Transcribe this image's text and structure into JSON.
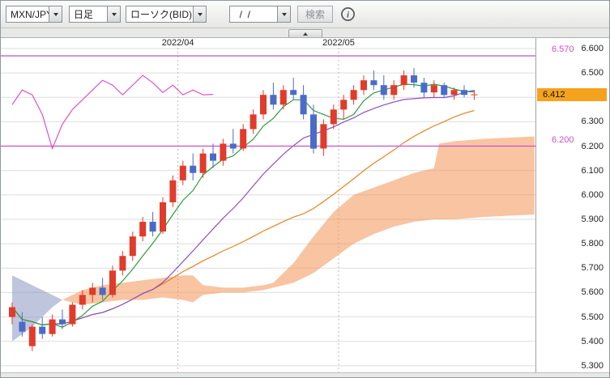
{
  "toolbar": {
    "pair": "MXN/JPY",
    "timeframe": "日足",
    "price_type": "ローソク(BID)",
    "date_value": "  /  /",
    "search": "検索"
  },
  "axis": {
    "labels": [
      "6.600",
      "6.500",
      "6.400",
      "6.300",
      "6.200",
      "6.100",
      "6.000",
      "5.900",
      "5.800",
      "5.700",
      "5.600",
      "5.500",
      "5.400",
      "5.300"
    ]
  },
  "price_marker": {
    "value": "6.412",
    "bg": "#f5a21d"
  },
  "chart_data": {
    "type": "candlestick",
    "symbol": "MXN/JPY",
    "timeframe_label": "日足",
    "quote_type": "ローソク(BID)",
    "ylim": [
      5.273,
      6.643
    ],
    "y_tick_step": 0.1,
    "x_labels": [
      {
        "label": "2022/04",
        "index": 16.5
      },
      {
        "label": "2022/05",
        "index": 32.5
      }
    ],
    "up_color": "#e13b2b",
    "down_color": "#4a6cc8",
    "grid_color": "#dedede",
    "candles": [
      [
        5.5,
        5.56,
        5.47,
        5.54
      ],
      [
        5.48,
        5.52,
        5.42,
        5.44
      ],
      [
        5.38,
        5.47,
        5.36,
        5.46
      ],
      [
        5.46,
        5.5,
        5.41,
        5.43
      ],
      [
        5.43,
        5.51,
        5.42,
        5.49
      ],
      [
        5.49,
        5.53,
        5.45,
        5.47
      ],
      [
        5.47,
        5.56,
        5.46,
        5.55
      ],
      [
        5.55,
        5.61,
        5.53,
        5.59
      ],
      [
        5.59,
        5.64,
        5.56,
        5.62
      ],
      [
        5.62,
        5.66,
        5.57,
        5.59
      ],
      [
        5.59,
        5.71,
        5.58,
        5.69
      ],
      [
        5.69,
        5.77,
        5.67,
        5.75
      ],
      [
        5.75,
        5.85,
        5.73,
        5.83
      ],
      [
        5.83,
        5.91,
        5.81,
        5.89
      ],
      [
        5.89,
        5.93,
        5.83,
        5.85
      ],
      [
        5.85,
        5.99,
        5.84,
        5.97
      ],
      [
        5.97,
        6.08,
        5.95,
        6.06
      ],
      [
        6.06,
        6.14,
        6.04,
        6.12
      ],
      [
        6.12,
        6.17,
        6.06,
        6.09
      ],
      [
        6.09,
        6.19,
        6.07,
        6.17
      ],
      [
        6.17,
        6.21,
        6.11,
        6.14
      ],
      [
        6.14,
        6.23,
        6.12,
        6.21
      ],
      [
        6.21,
        6.27,
        6.17,
        6.19
      ],
      [
        6.19,
        6.29,
        6.18,
        6.27
      ],
      [
        6.27,
        6.35,
        6.25,
        6.33
      ],
      [
        6.33,
        6.43,
        6.31,
        6.41
      ],
      [
        6.41,
        6.46,
        6.35,
        6.37
      ],
      [
        6.37,
        6.45,
        6.35,
        6.43
      ],
      [
        6.43,
        6.48,
        6.39,
        6.41
      ],
      [
        6.41,
        6.45,
        6.31,
        6.33
      ],
      [
        6.33,
        6.37,
        6.17,
        6.19
      ],
      [
        6.19,
        6.31,
        6.16,
        6.29
      ],
      [
        6.29,
        6.37,
        6.27,
        6.35
      ],
      [
        6.35,
        6.41,
        6.31,
        6.39
      ],
      [
        6.39,
        6.45,
        6.37,
        6.43
      ],
      [
        6.43,
        6.49,
        6.41,
        6.47
      ],
      [
        6.47,
        6.51,
        6.43,
        6.45
      ],
      [
        6.45,
        6.49,
        6.39,
        6.41
      ],
      [
        6.41,
        6.47,
        6.39,
        6.45
      ],
      [
        6.45,
        6.51,
        6.43,
        6.49
      ],
      [
        6.49,
        6.52,
        6.44,
        6.46
      ],
      [
        6.46,
        6.48,
        6.4,
        6.42
      ],
      [
        6.42,
        6.47,
        6.4,
        6.45
      ],
      [
        6.45,
        6.46,
        6.4,
        6.41
      ],
      [
        6.41,
        6.44,
        6.39,
        6.43
      ],
      [
        6.43,
        6.45,
        6.4,
        6.41
      ],
      [
        6.41,
        6.43,
        6.39,
        6.412
      ]
    ],
    "hlines": [
      {
        "price": 6.57,
        "label": "6.570",
        "color": "#cb4fcb"
      },
      {
        "price": 6.2,
        "label": "6.200",
        "color": "#cb4fcb"
      }
    ],
    "overlays": {
      "sma_short": {
        "period": 5,
        "color": "#2e9e3a"
      },
      "sma_mid": {
        "period": 15,
        "color": "#8a4fc8"
      },
      "sma_long": {
        "period": 30,
        "color": "#e8821e"
      },
      "lagging_span": {
        "shift": 26,
        "color": "#e052c8"
      },
      "cloud": {
        "bull_color": "rgba(242,148,84,0.55)",
        "bear_color": "rgba(140,150,195,0.55)",
        "bear": {
          "xs": [
            0,
            1,
            2,
            3,
            4,
            5
          ],
          "top": [
            5.67,
            5.65,
            5.63,
            5.61,
            5.59,
            5.57
          ],
          "bottom": [
            5.4,
            5.43,
            5.46,
            5.5,
            5.54,
            5.57
          ]
        },
        "bull": {
          "xs": [
            5,
            7,
            9,
            11,
            13,
            15,
            17,
            18,
            19,
            21,
            23,
            25,
            26,
            28,
            30,
            32,
            34,
            36,
            38,
            40,
            42,
            42.5,
            44,
            47,
            52
          ],
          "top": [
            5.57,
            5.61,
            5.63,
            5.64,
            5.65,
            5.66,
            5.67,
            5.67,
            5.63,
            5.62,
            5.62,
            5.63,
            5.64,
            5.72,
            5.83,
            5.93,
            6.0,
            6.03,
            6.06,
            6.09,
            6.11,
            6.21,
            6.22,
            6.23,
            6.24
          ],
          "bottom": [
            5.57,
            5.55,
            5.56,
            5.57,
            5.57,
            5.58,
            5.57,
            5.56,
            5.59,
            5.6,
            5.6,
            5.61,
            5.62,
            5.64,
            5.68,
            5.74,
            5.8,
            5.84,
            5.87,
            5.89,
            5.9,
            5.9,
            5.9,
            5.91,
            5.92
          ]
        }
      }
    }
  }
}
